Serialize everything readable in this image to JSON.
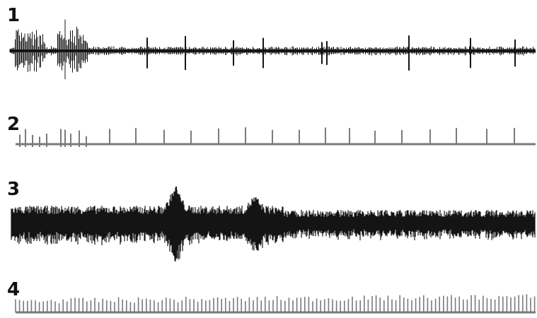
{
  "figure": {
    "traces": [
      {
        "label": "1"
      },
      {
        "label": "2"
      },
      {
        "label": "3"
      },
      {
        "label": "4"
      }
    ]
  },
  "colors": {
    "ink": "#151515",
    "baseline": "#7a7a7a",
    "background": "#ffffff"
  }
}
